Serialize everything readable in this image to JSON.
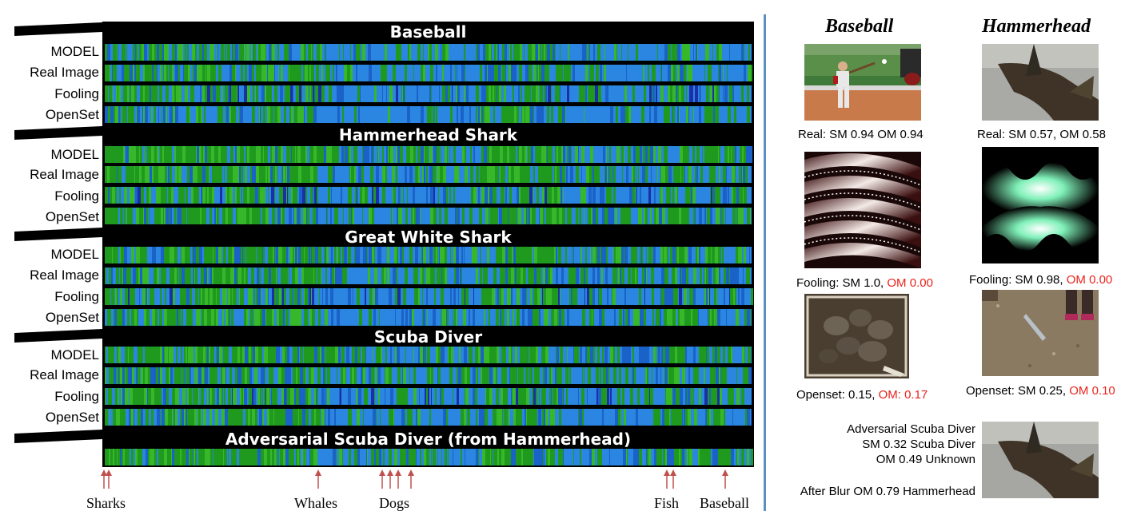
{
  "figure": {
    "heatmap": {
      "sections": [
        {
          "title": "Baseball",
          "rows": [
            "MODEL",
            "Real Image",
            "Fooling",
            "OpenSet"
          ]
        },
        {
          "title": "Hammerhead Shark",
          "rows": [
            "MODEL",
            "Real Image",
            "Fooling",
            "OpenSet"
          ]
        },
        {
          "title": "Great White Shark",
          "rows": [
            "MODEL",
            "Real Image",
            "Fooling",
            "OpenSet"
          ]
        },
        {
          "title": "Scuba Diver",
          "rows": [
            "MODEL",
            "Real Image",
            "Fooling",
            "OpenSet"
          ]
        },
        {
          "title": "Adversarial Scuba Diver (from Hammerhead)",
          "rows": []
        }
      ],
      "axis_markers": [
        {
          "label": "Sharks"
        },
        {
          "label": "Whales"
        },
        {
          "label": "Dogs"
        },
        {
          "label": "Fish"
        },
        {
          "label": "Baseball"
        }
      ],
      "colors": {
        "background": "#000000",
        "blue": "#2a86e0",
        "green": "#1f9a1f",
        "arrow": "#c0504d"
      }
    },
    "panels": {
      "baseball": {
        "title": "Baseball",
        "real_caption": "Real: SM 0.94  OM 0.94",
        "fooling_caption_prefix": "Fooling: SM 1.0, ",
        "fooling_caption_om": "OM 0.00",
        "openset_caption_prefix": "Openset: 0.15,  ",
        "openset_caption_om": "OM: 0.17"
      },
      "hammerhead": {
        "title": "Hammerhead",
        "real_caption": "Real: SM 0.57, OM 0.58",
        "fooling_caption_prefix": "Fooling: SM 0.98, ",
        "fooling_caption_om": "OM 0.00",
        "openset_caption_prefix": "Openset: SM 0.25, ",
        "openset_caption_om": "OM 0.10"
      },
      "adversarial": {
        "line1": "Adversarial Scuba Diver",
        "line2": "SM 0.32 Scuba Diver",
        "line3": "OM 0.49 Unknown",
        "line4": "After Blur OM 0.79 Hammerhead"
      },
      "accent_red": "#e8231c"
    }
  }
}
